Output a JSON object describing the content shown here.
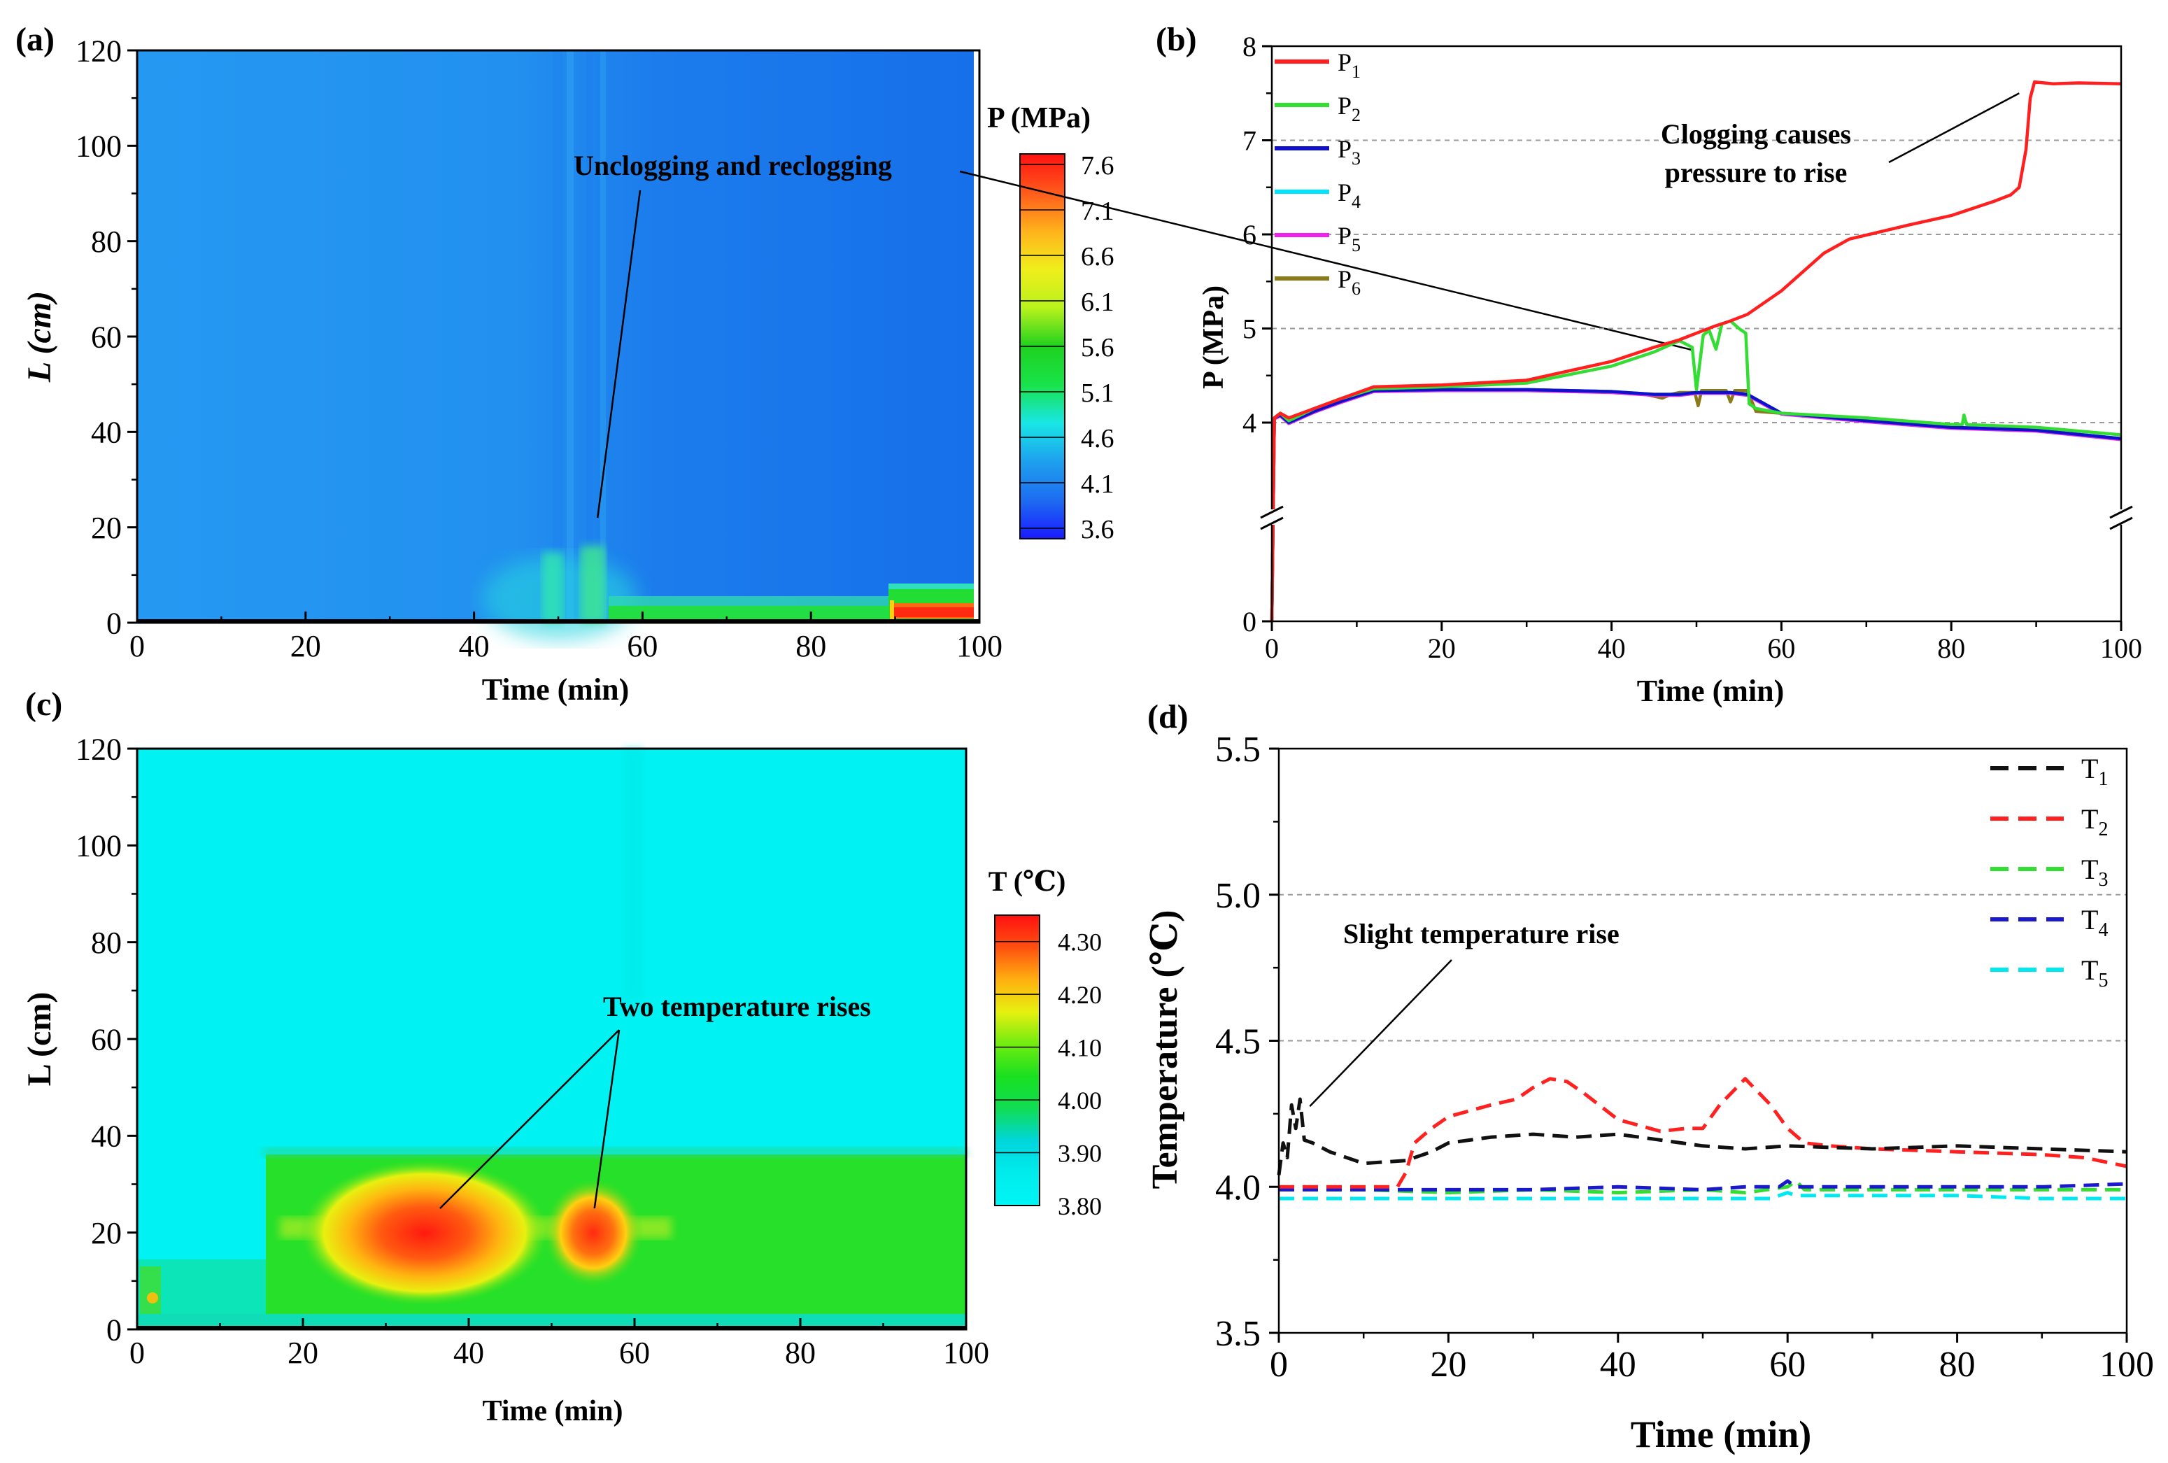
{
  "colors": {
    "P1": "#ff1f1f",
    "P2": "#33dd33",
    "P3": "#1010cc",
    "P4": "#00e5ff",
    "P5": "#ee22ee",
    "P6": "#8a7a1a",
    "T1": "#111111",
    "T2": "#ff2020",
    "T3": "#33dd33",
    "T4": "#1a1acc",
    "T5": "#00e8f0",
    "grid": "#9a9a9a",
    "annot": "#000000"
  },
  "chart_data": [
    {
      "panel": "a",
      "type": "heatmap",
      "panel_label": "(a)",
      "xlabel": "Time (min)",
      "ylabel": "L (cm)",
      "xlim": [
        0,
        100
      ],
      "ylim": [
        0,
        120
      ],
      "xticks": [
        "0",
        "20",
        "40",
        "60",
        "80",
        "100"
      ],
      "yticks": [
        "0",
        "20",
        "40",
        "60",
        "80",
        "100",
        "120"
      ],
      "colorbar": {
        "title": "P (MPa)",
        "min": 3.6,
        "max": 7.6,
        "labels": [
          "7.6",
          "7.1",
          "6.6",
          "6.1",
          "5.6",
          "5.1",
          "4.6",
          "4.1",
          "3.6"
        ],
        "stops": [
          "#1a1aff",
          "#1e6cf0",
          "#1ea0ee",
          "#19e6e6",
          "#19e34b",
          "#1fd11f",
          "#b9f21c",
          "#f0ee1c",
          "#ffb21c",
          "#ff5a1c",
          "#ff1010"
        ]
      },
      "annotations": [
        {
          "text": "Unclogging and reclogging",
          "x": 55,
          "y": 22
        }
      ]
    },
    {
      "panel": "b",
      "type": "line",
      "panel_label": "(b)",
      "xlabel": "Time (min)",
      "ylabel": "P (MPa)",
      "xlim": [
        0,
        100
      ],
      "ylim": [
        0,
        8
      ],
      "axis_break": [
        0.5,
        3
      ],
      "xticks": [
        "0",
        "20",
        "40",
        "60",
        "80",
        "100"
      ],
      "yticks": [
        "0",
        "4",
        "5",
        "6",
        "7",
        "8"
      ],
      "grid": "horizontal-dashed",
      "legend": "top-left",
      "series": [
        {
          "name": "P",
          "sub": "1",
          "color_key": "P1",
          "x": [
            0,
            0.3,
            1,
            2,
            5,
            8,
            12,
            20,
            30,
            40,
            45,
            48,
            50,
            52,
            54,
            56,
            60,
            65,
            68,
            75,
            80,
            85,
            87,
            88,
            88.8,
            89.3,
            89.8,
            92,
            95,
            100
          ],
          "y": [
            0,
            4.05,
            4.1,
            4.05,
            4.15,
            4.25,
            4.38,
            4.4,
            4.45,
            4.65,
            4.8,
            4.88,
            4.95,
            5.02,
            5.08,
            5.15,
            5.4,
            5.8,
            5.95,
            6.1,
            6.2,
            6.35,
            6.42,
            6.5,
            6.9,
            7.45,
            7.62,
            7.6,
            7.61,
            7.6
          ]
        },
        {
          "name": "P",
          "sub": "2",
          "color_key": "P2",
          "x": [
            0,
            0.3,
            1,
            2,
            5,
            8,
            12,
            20,
            30,
            40,
            45,
            48,
            49.5,
            50,
            50.8,
            51.5,
            52.3,
            53,
            54,
            55,
            55.8,
            56.2,
            57,
            60,
            70,
            80,
            81.3,
            81.5,
            81.8,
            90,
            100
          ],
          "y": [
            0,
            4.05,
            4.1,
            4.02,
            4.15,
            4.25,
            4.36,
            4.38,
            4.42,
            4.6,
            4.75,
            4.87,
            4.8,
            4.35,
            4.93,
            4.98,
            4.78,
            5.05,
            5.08,
            5.0,
            4.95,
            4.2,
            4.15,
            4.1,
            4.05,
            3.98,
            3.98,
            4.08,
            3.98,
            3.95,
            3.87
          ]
        },
        {
          "name": "P",
          "sub": "3",
          "color_key": "P3",
          "x": [
            0,
            0.3,
            1,
            2,
            5,
            8,
            12,
            20,
            30,
            40,
            45,
            48,
            50,
            52,
            54,
            56,
            60,
            70,
            80,
            90,
            100
          ],
          "y": [
            0,
            4.05,
            4.08,
            4.0,
            4.12,
            4.22,
            4.34,
            4.35,
            4.35,
            4.33,
            4.3,
            4.3,
            4.32,
            4.32,
            4.32,
            4.3,
            4.1,
            4.02,
            3.95,
            3.92,
            3.83
          ]
        },
        {
          "name": "P",
          "sub": "4",
          "color_key": "P4",
          "x": [
            0,
            0.3,
            1,
            2,
            5,
            8,
            12,
            20,
            30,
            40,
            45,
            48,
            50,
            52,
            54,
            56,
            60,
            70,
            80,
            90,
            100
          ],
          "y": [
            0,
            4.05,
            4.08,
            4.0,
            4.12,
            4.22,
            4.34,
            4.35,
            4.35,
            4.33,
            4.3,
            4.3,
            4.32,
            4.32,
            4.32,
            4.3,
            4.1,
            4.02,
            3.95,
            3.92,
            3.83
          ]
        },
        {
          "name": "P",
          "sub": "5",
          "color_key": "P5",
          "x": [
            0,
            0.3,
            1,
            2,
            5,
            8,
            12,
            20,
            30,
            40,
            45,
            48,
            50,
            52,
            54,
            56,
            60,
            70,
            80,
            90,
            100
          ],
          "y": [
            0,
            4.04,
            4.07,
            3.99,
            4.11,
            4.21,
            4.33,
            4.34,
            4.34,
            4.32,
            4.29,
            4.29,
            4.31,
            4.31,
            4.31,
            4.29,
            4.09,
            4.01,
            3.94,
            3.91,
            3.82
          ]
        },
        {
          "name": "P",
          "sub": "6",
          "color_key": "P6",
          "x": [
            0,
            0.3,
            1,
            2,
            5,
            8,
            12,
            20,
            30,
            40,
            44,
            46,
            47,
            48,
            49.8,
            50.2,
            50.6,
            52,
            53.5,
            54,
            54.5,
            56,
            57,
            60,
            70,
            80,
            90,
            100
          ],
          "y": [
            0,
            4.05,
            4.08,
            4.0,
            4.12,
            4.22,
            4.34,
            4.35,
            4.35,
            4.33,
            4.3,
            4.26,
            4.3,
            4.32,
            4.32,
            4.18,
            4.34,
            4.34,
            4.34,
            4.22,
            4.34,
            4.34,
            4.12,
            4.1,
            4.02,
            3.95,
            3.92,
            3.83
          ]
        }
      ],
      "annotations": [
        {
          "text_lines": [
            "Clogging causes",
            "pressure to rise"
          ],
          "x": 88,
          "y": 7.5
        }
      ]
    },
    {
      "panel": "c",
      "type": "heatmap",
      "panel_label": "(c)",
      "xlabel": "Time (min)",
      "ylabel": "L (cm)",
      "xlim": [
        0,
        100
      ],
      "ylim": [
        0,
        120
      ],
      "xticks": [
        "0",
        "20",
        "40",
        "60",
        "80",
        "100"
      ],
      "yticks": [
        "0",
        "20",
        "40",
        "60",
        "80",
        "100",
        "120"
      ],
      "colorbar": {
        "title": "T (℃)",
        "min": 3.8,
        "max": 4.35,
        "labels": [
          "4.30",
          "4.20",
          "4.10",
          "4.00",
          "3.90",
          "3.80"
        ],
        "stops": [
          "#00f5f5",
          "#00ecec",
          "#00d6dc",
          "#10dd55",
          "#18e020",
          "#70ec10",
          "#e6f010",
          "#ffb010",
          "#ff5010",
          "#ff1010"
        ]
      },
      "annotations": [
        {
          "text": "Two temperature rises",
          "targets": [
            {
              "x": 34,
              "y": 25
            },
            {
              "x": 55,
              "y": 25
            }
          ]
        }
      ]
    },
    {
      "panel": "d",
      "type": "line",
      "panel_label": "(d)",
      "xlabel": "Time (min)",
      "ylabel": "Temperature (℃)",
      "xlim": [
        0,
        100
      ],
      "ylim": [
        3.5,
        5.5
      ],
      "xticks": [
        "0",
        "20",
        "40",
        "60",
        "80",
        "100"
      ],
      "yticks": [
        "3.5",
        "4.0",
        "4.5",
        "5.0",
        "5.5"
      ],
      "grid": "horizontal-dashed",
      "legend": "top-right",
      "series": [
        {
          "name": "T",
          "sub": "1",
          "color_key": "T1",
          "x": [
            0,
            0.5,
            1,
            1.5,
            2,
            2.5,
            3,
            4,
            6,
            10,
            15,
            18,
            20,
            25,
            30,
            35,
            40,
            45,
            50,
            55,
            60,
            70,
            80,
            90,
            100
          ],
          "y": [
            4.04,
            4.15,
            4.1,
            4.28,
            4.2,
            4.3,
            4.16,
            4.15,
            4.12,
            4.08,
            4.09,
            4.12,
            4.15,
            4.17,
            4.18,
            4.17,
            4.18,
            4.16,
            4.14,
            4.13,
            4.14,
            4.13,
            4.14,
            4.13,
            4.12
          ]
        },
        {
          "name": "T",
          "sub": "2",
          "color_key": "T2",
          "x": [
            0,
            10,
            14,
            15,
            16,
            18,
            20,
            25,
            28,
            30,
            32,
            34,
            36,
            40,
            45,
            48,
            50,
            52,
            54,
            55,
            56,
            58,
            60,
            62,
            65,
            70,
            80,
            90,
            95,
            100
          ],
          "y": [
            4.0,
            4.0,
            4.0,
            4.05,
            4.15,
            4.2,
            4.24,
            4.28,
            4.3,
            4.34,
            4.37,
            4.36,
            4.32,
            4.23,
            4.19,
            4.2,
            4.2,
            4.28,
            4.34,
            4.37,
            4.34,
            4.28,
            4.2,
            4.15,
            4.14,
            4.13,
            4.12,
            4.11,
            4.1,
            4.07
          ]
        },
        {
          "name": "T",
          "sub": "3",
          "color_key": "T3",
          "x": [
            0,
            10,
            20,
            30,
            40,
            50,
            55,
            60,
            61,
            62,
            70,
            80,
            90,
            100
          ],
          "y": [
            3.99,
            3.99,
            3.98,
            3.99,
            3.98,
            3.99,
            3.98,
            4.0,
            4.02,
            3.99,
            3.99,
            3.99,
            3.99,
            3.99
          ]
        },
        {
          "name": "T",
          "sub": "4",
          "color_key": "T4",
          "x": [
            0,
            10,
            20,
            30,
            40,
            50,
            55,
            59,
            60,
            61,
            62,
            70,
            80,
            90,
            100
          ],
          "y": [
            3.99,
            3.99,
            3.99,
            3.99,
            4.0,
            3.99,
            4.0,
            4.0,
            4.02,
            4.0,
            4.0,
            4.0,
            4.0,
            4.0,
            4.01
          ]
        },
        {
          "name": "T",
          "sub": "5",
          "color_key": "T5",
          "x": [
            0,
            10,
            20,
            30,
            40,
            50,
            55,
            58,
            60,
            61,
            65,
            70,
            80,
            90,
            100
          ],
          "y": [
            3.96,
            3.96,
            3.96,
            3.96,
            3.96,
            3.96,
            3.96,
            3.96,
            3.98,
            3.97,
            3.97,
            3.97,
            3.97,
            3.96,
            3.96
          ]
        }
      ],
      "annotations": [
        {
          "text": "Slight temperature rise",
          "x": 2.5,
          "y": 4.29
        }
      ]
    }
  ]
}
